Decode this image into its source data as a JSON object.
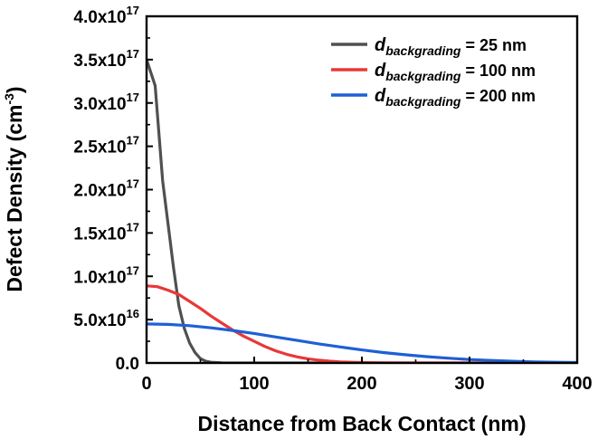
{
  "chart_data": {
    "type": "line",
    "title": "",
    "xlabel": "Distance from Back Contact (nm)",
    "ylabel": {
      "main": "Defect Density (cm",
      "sup": "-3",
      "close": ")"
    },
    "xlim": [
      0,
      400
    ],
    "ylim": [
      0,
      4e+17
    ],
    "x_ticks": [
      {
        "value": 0,
        "label": "0"
      },
      {
        "value": 100,
        "label": "100"
      },
      {
        "value": 200,
        "label": "200"
      },
      {
        "value": 300,
        "label": "300"
      },
      {
        "value": 400,
        "label": "400"
      }
    ],
    "y_ticks": [
      {
        "value": 0,
        "label": "0.0"
      },
      {
        "value": 5e+16,
        "mant": "5.0x10",
        "exp": "16"
      },
      {
        "value": 1e+17,
        "mant": "1.0x10",
        "exp": "17"
      },
      {
        "value": 1.5e+17,
        "mant": "1.5x10",
        "exp": "17"
      },
      {
        "value": 2e+17,
        "mant": "2.0x10",
        "exp": "17"
      },
      {
        "value": 2.5e+17,
        "mant": "2.5x10",
        "exp": "17"
      },
      {
        "value": 3e+17,
        "mant": "3.0x10",
        "exp": "17"
      },
      {
        "value": 3.5e+17,
        "mant": "3.5x10",
        "exp": "17"
      },
      {
        "value": 4e+17,
        "mant": "4.0x10",
        "exp": "17"
      }
    ],
    "grid": false,
    "legend_position": "top-right",
    "series": [
      {
        "legend_symbol": "d",
        "legend_subscript": "backgrading",
        "legend_suffix": " = 25 nm",
        "color": "#505050",
        "x": [
          0,
          8,
          15,
          20,
          25,
          30,
          35,
          40,
          45,
          50,
          55,
          60,
          70,
          80,
          100,
          150,
          200,
          300,
          400
        ],
        "y": [
          3.5e+17,
          3.2e+17,
          2.1e+17,
          1.6e+17,
          1.1e+17,
          6.6e+16,
          4e+16,
          2.3e+16,
          1.2e+16,
          5000000000000000.0,
          2000000000000000.0,
          800000000000000.0,
          200000000000000.0,
          0,
          0,
          0,
          0,
          0,
          0
        ]
      },
      {
        "legend_symbol": "d",
        "legend_subscript": "backgrading",
        "legend_suffix": " = 100 nm",
        "color": "#e83838",
        "x": [
          0,
          10,
          20,
          30,
          40,
          50,
          60,
          70,
          80,
          90,
          100,
          110,
          120,
          130,
          140,
          150,
          160,
          170,
          180,
          190,
          200,
          210,
          220,
          250,
          300,
          400
        ],
        "y": [
          8.9e+16,
          8.8e+16,
          8.4e+16,
          7.9e+16,
          7.1e+16,
          6.3e+16,
          5.4e+16,
          4.6e+16,
          3.8e+16,
          3.1e+16,
          2.5e+16,
          1.9e+16,
          1.4e+16,
          1e+16,
          7000000000000000.0,
          4800000000000000.0,
          3200000000000000.0,
          2100000000000000.0,
          1300000000000000.0,
          800000000000000.0,
          500000000000000.0,
          300000000000000.0,
          150000000000000.0,
          0,
          0,
          0
        ]
      },
      {
        "legend_symbol": "d",
        "legend_subscript": "backgrading",
        "legend_suffix": " = 200 nm",
        "color": "#1f5fd6",
        "x": [
          0,
          20,
          40,
          60,
          80,
          100,
          120,
          140,
          160,
          180,
          200,
          220,
          240,
          260,
          280,
          300,
          320,
          340,
          360,
          380,
          400
        ],
        "y": [
          4.5e+16,
          4.45e+16,
          4.3e+16,
          4.05e+16,
          3.75e+16,
          3.4e+16,
          3e+16,
          2.6e+16,
          2.2e+16,
          1.85e+16,
          1.5e+16,
          1.2e+16,
          9500000000000000.0,
          7300000000000000.0,
          5500000000000000.0,
          4000000000000000.0,
          2900000000000000.0,
          2000000000000000.0,
          1300000000000000.0,
          800000000000000.0,
          500000000000000.0
        ]
      }
    ]
  }
}
